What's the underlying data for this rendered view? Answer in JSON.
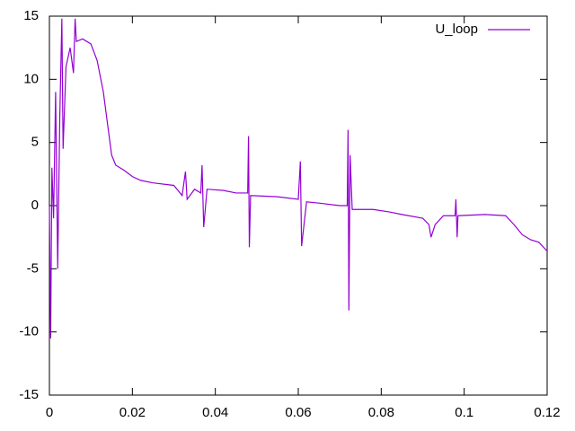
{
  "chart_data": {
    "type": "line",
    "xlim": [
      0,
      0.12
    ],
    "xticks": [
      0,
      0.02,
      0.04,
      0.06,
      0.08,
      0.1,
      0.12
    ],
    "ylim": [
      -15,
      15
    ],
    "yticks": [
      -15,
      -10,
      -5,
      0,
      5,
      10,
      15
    ],
    "grid": false,
    "legend": "top-right",
    "series": [
      {
        "name": "U_loop",
        "color": "#9400d3",
        "x": [
          0,
          0.0003,
          0.0006,
          0.001,
          0.0015,
          0.002,
          0.0025,
          0.003,
          0.0033,
          0.004,
          0.005,
          0.0058,
          0.0062,
          0.0065,
          0.008,
          0.01,
          0.0115,
          0.013,
          0.014,
          0.015,
          0.016,
          0.018,
          0.02,
          0.022,
          0.025,
          0.03,
          0.032,
          0.0328,
          0.0332,
          0.035,
          0.0365,
          0.0368,
          0.0372,
          0.038,
          0.042,
          0.045,
          0.0478,
          0.048,
          0.0482,
          0.0485,
          0.055,
          0.06,
          0.0605,
          0.0608,
          0.062,
          0.065,
          0.07,
          0.0718,
          0.072,
          0.0722,
          0.0725,
          0.073,
          0.078,
          0.082,
          0.085,
          0.09,
          0.0915,
          0.092,
          0.093,
          0.095,
          0.0978,
          0.098,
          0.0983,
          0.0985,
          0.105,
          0.11,
          0.112,
          0.114,
          0.116,
          0.118,
          0.12
        ],
        "values": [
          0,
          -10.5,
          3,
          -1,
          9,
          -5,
          7,
          14.8,
          4.5,
          11,
          12.5,
          10.5,
          14.8,
          13,
          13.2,
          12.8,
          11.5,
          9,
          6.5,
          4,
          3.2,
          2.8,
          2.3,
          2,
          1.8,
          1.6,
          0.8,
          2.7,
          0.5,
          1.3,
          1.0,
          3.2,
          -1.7,
          1.3,
          1.2,
          1.0,
          1.0,
          5.5,
          -3.3,
          0.8,
          0.7,
          0.5,
          3.5,
          -3.2,
          0.3,
          0.2,
          0,
          0,
          6,
          -8.3,
          4,
          -0.3,
          -0.3,
          -0.5,
          -0.7,
          -1,
          -1.5,
          -2.5,
          -1.5,
          -0.8,
          -0.8,
          0.5,
          -2.5,
          -0.8,
          -0.7,
          -0.8,
          -1.5,
          -2.3,
          -2.7,
          -2.9,
          -3.6
        ]
      }
    ]
  }
}
